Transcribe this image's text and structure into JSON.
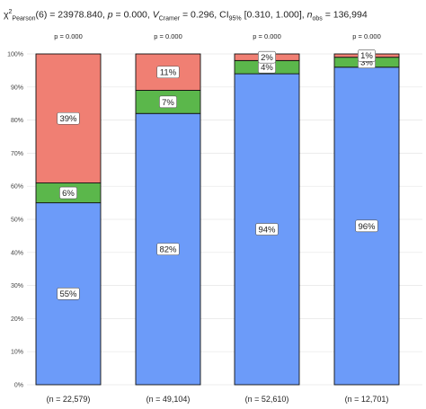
{
  "subtitle": {
    "chi": "χ",
    "chi_sup": "2",
    "chi_sub": "Pearson",
    "df": "(6)",
    "stat": " = 23978.840, ",
    "p_label": "p",
    "p_value": " = 0.000, ",
    "v_label": "V",
    "v_sub": "Cramer",
    "v_value": " = 0.296, ",
    "ci_label": "CI",
    "ci_sub": "95%",
    "ci_value": " [0.310, 1.000], ",
    "n_label": "n",
    "n_sub": "obs",
    "n_value": " = 136,994"
  },
  "colors": {
    "series1": "#F07F73",
    "series2": "#5BB74B",
    "series3": "#6C9BF9",
    "grid": "#e6e6e6",
    "bar_edge": "#111111",
    "label_edge": "#555555"
  },
  "chart_data": {
    "type": "bar",
    "stacked": "percent",
    "categories": [
      "",
      "",
      "",
      ""
    ],
    "ylim": [
      0,
      100
    ],
    "ytick_labels": [
      "0%",
      "10%",
      "20%",
      "30%",
      "40%",
      "50%",
      "60%",
      "70%",
      "80%",
      "90%",
      "100%"
    ],
    "series": [
      {
        "color": "#6C9BF9",
        "values": [
          55,
          82,
          94,
          96
        ],
        "labels": [
          "55%",
          "82%",
          "94%",
          "96%"
        ]
      },
      {
        "color": "#5BB74B",
        "values": [
          6,
          7,
          4,
          3
        ],
        "labels": [
          "6%",
          "7%",
          "4%",
          "3%"
        ]
      },
      {
        "color": "#F07F73",
        "values": [
          39,
          11,
          2,
          1
        ],
        "labels": [
          "39%",
          "11%",
          "2%",
          "1%"
        ]
      }
    ],
    "p_labels": [
      "p = 0.000",
      "p = 0.000",
      "p = 0.000",
      "p = 0.000"
    ],
    "n_labels": [
      "(n = 22,579)",
      "(n = 49,104)",
      "(n = 52,610)",
      "(n = 12,701)"
    ],
    "grid": true
  }
}
